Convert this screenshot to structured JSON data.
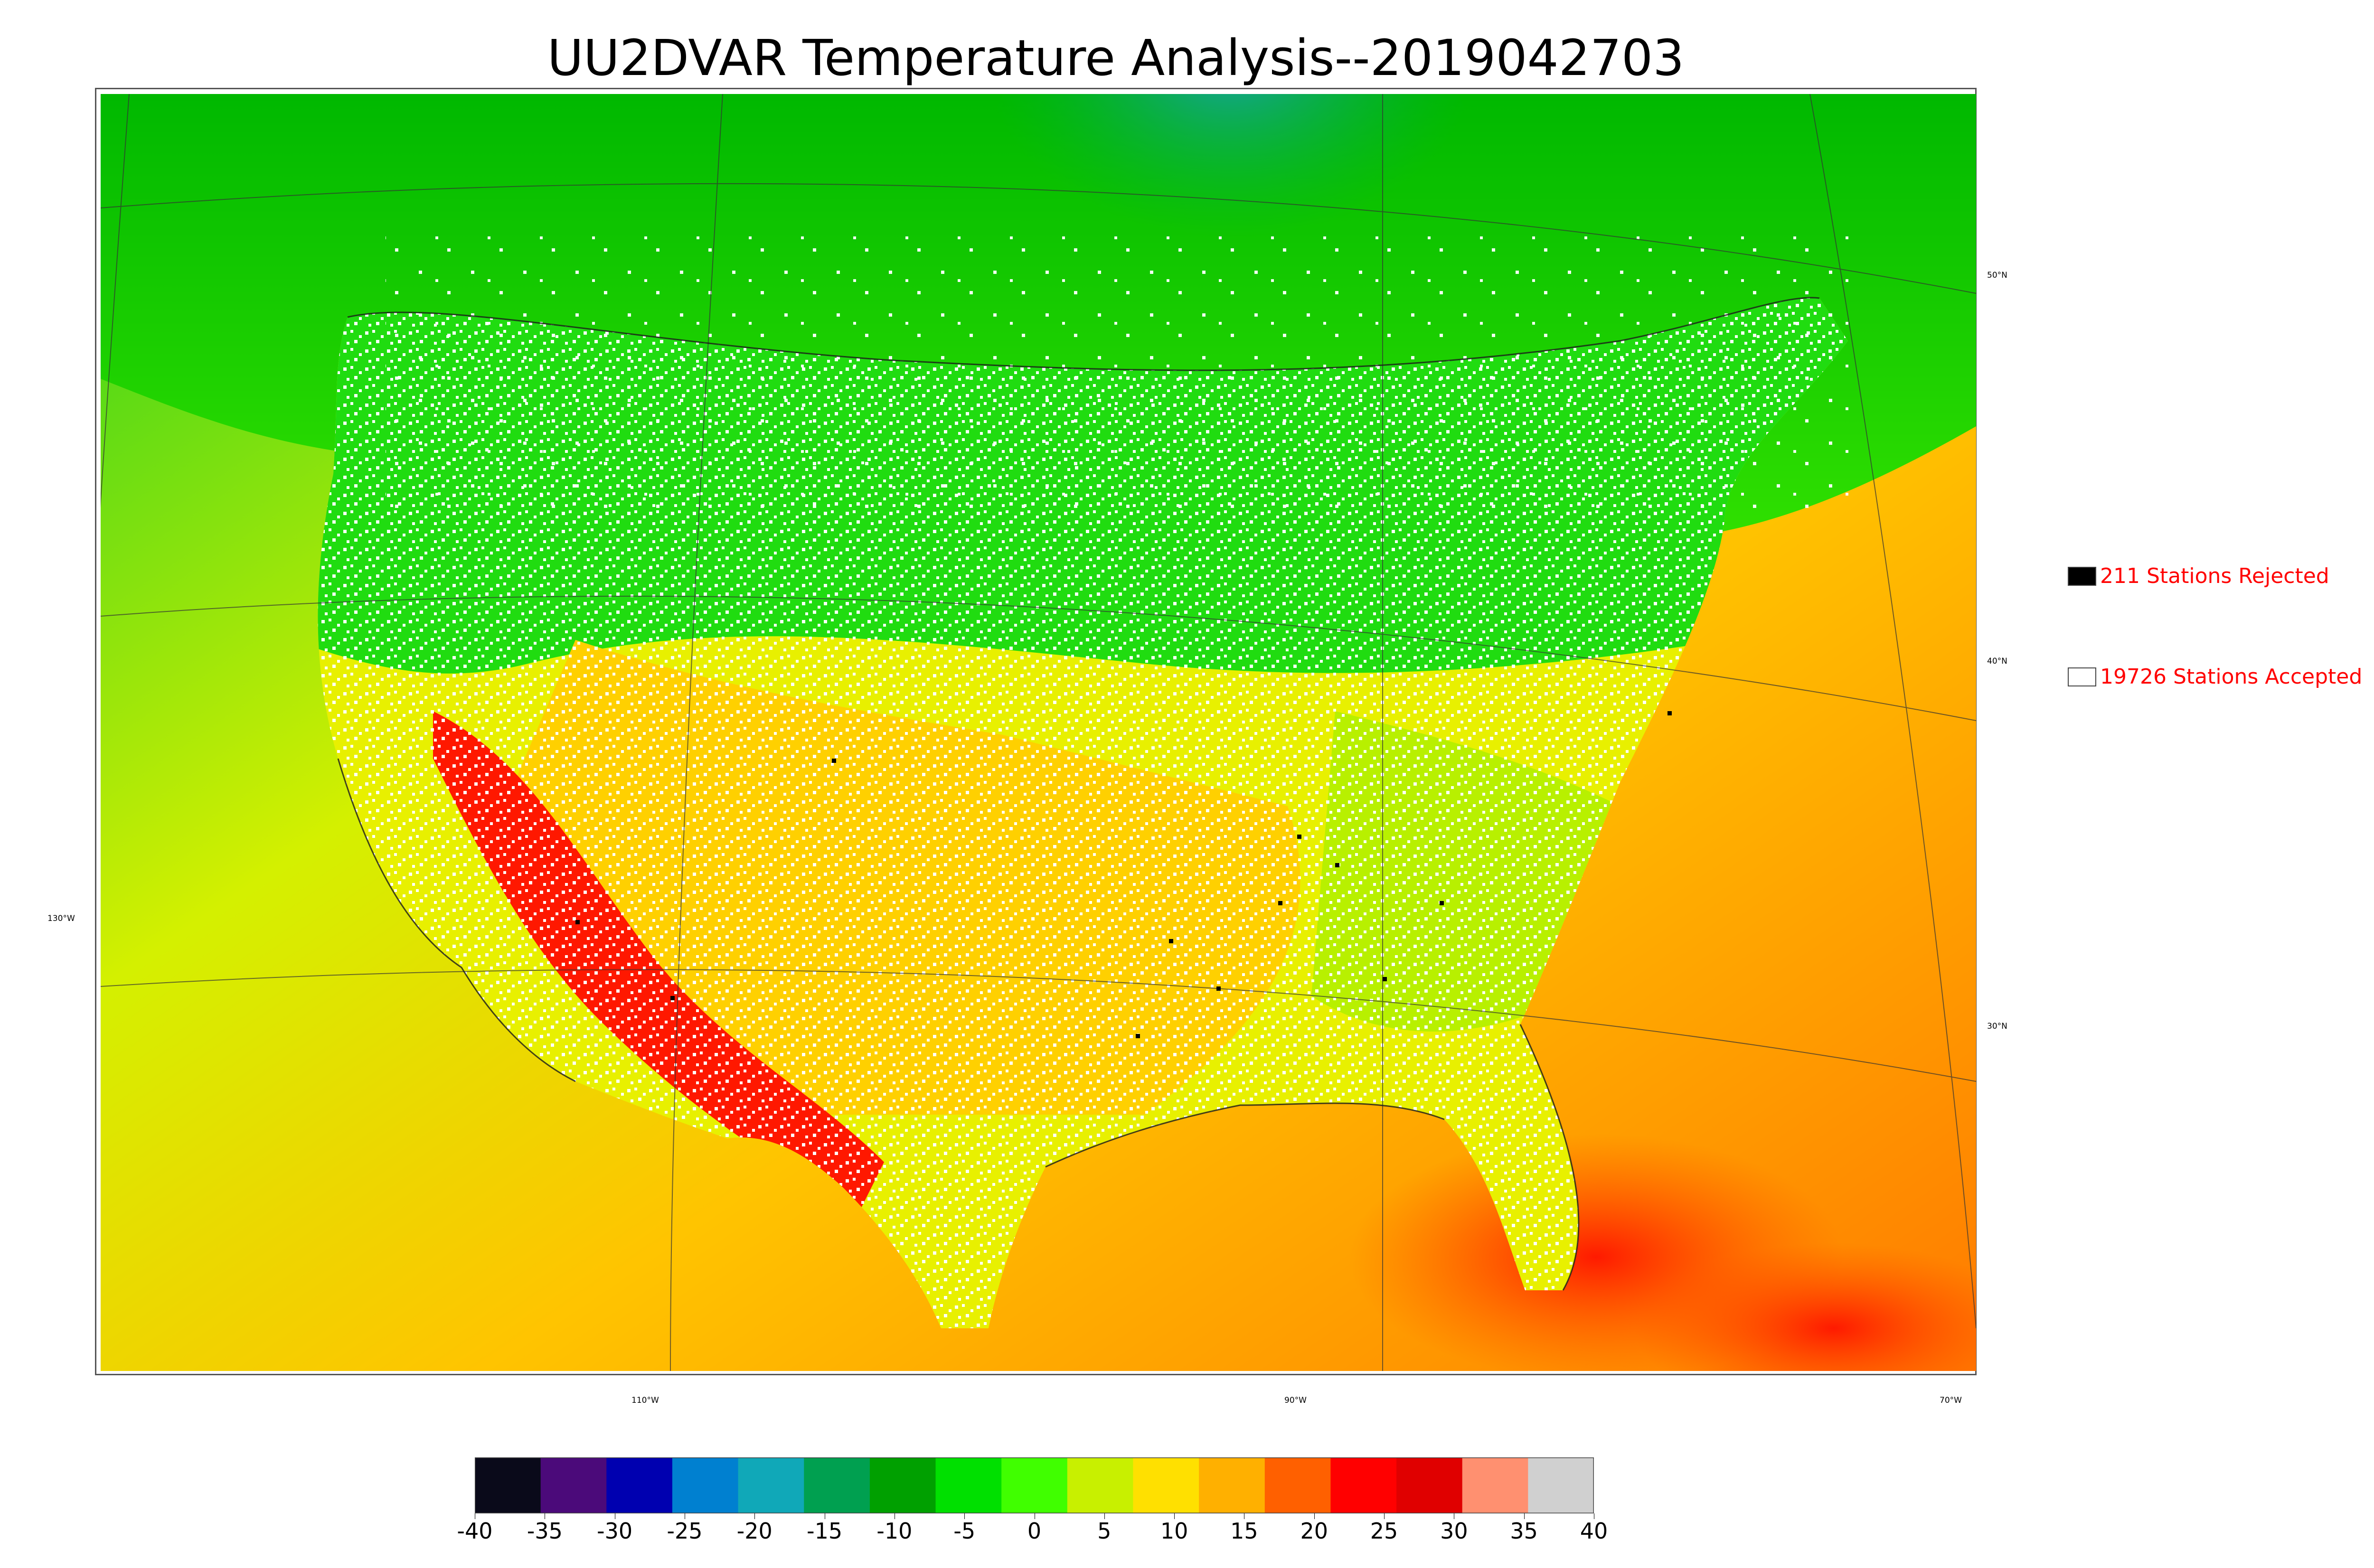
{
  "title": "UU2DVAR Temperature Analysis--2019042703",
  "legend": {
    "rejected": {
      "label": "211 Stations Rejected",
      "count": 211,
      "swatch_color": "#000000"
    },
    "accepted": {
      "label": "19726 Stations Accepted",
      "count": 19726,
      "swatch_color": "#ffffff"
    }
  },
  "latitude_labels": [
    "50°N",
    "40°N",
    "30°N"
  ],
  "longitude_labels": [
    "130°W",
    "110°W",
    "90°W",
    "70°W"
  ],
  "colorbar": {
    "ticks": [
      "-40",
      "-35",
      "-30",
      "-25",
      "-20",
      "-15",
      "-10",
      "-5",
      "0",
      "5",
      "10",
      "15",
      "20",
      "25",
      "30",
      "35",
      "40"
    ],
    "range": [
      -40,
      40
    ],
    "colors": [
      "#0a0a1a",
      "#4b0a7a",
      "#0000b0",
      "#0080d0",
      "#10a8b8",
      "#00a050",
      "#00a000",
      "#00e000",
      "#40ff00",
      "#c8f000",
      "#ffe000",
      "#ffb000",
      "#ff6000",
      "#ff0000",
      "#e00000",
      "#ff9070",
      "#d0d0d0"
    ]
  }
}
